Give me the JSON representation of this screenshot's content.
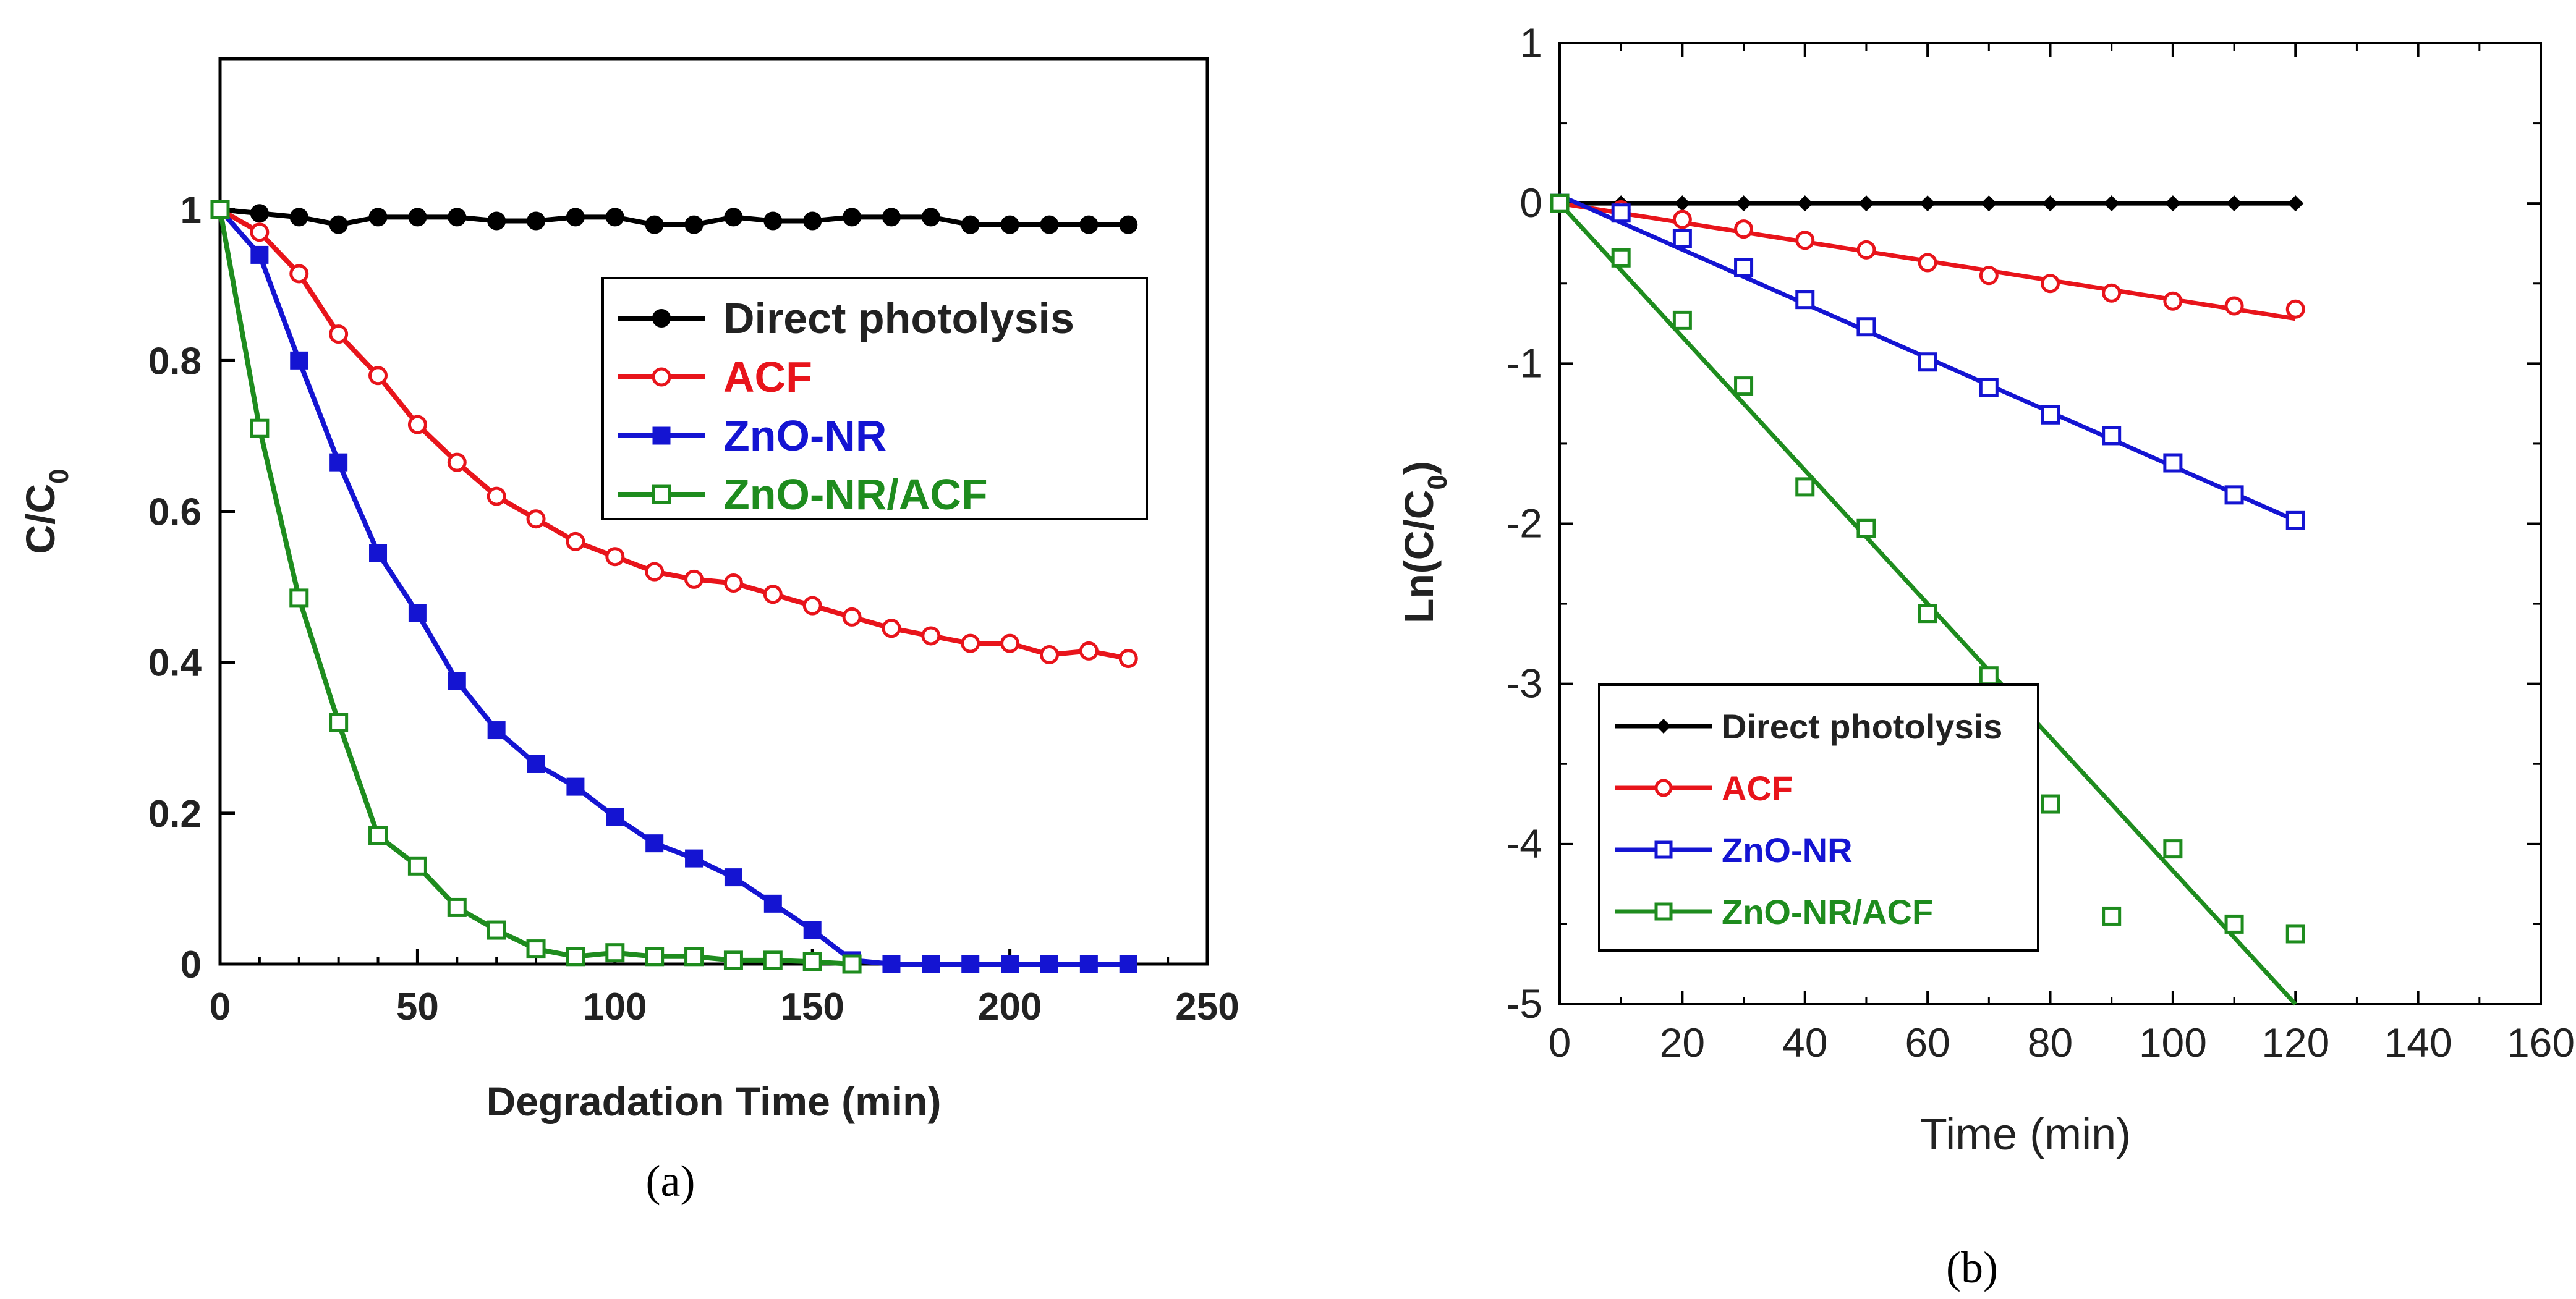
{
  "chart_data": [
    {
      "type": "line",
      "panel_label": "(a)",
      "xlabel": "Degradation Time (min)",
      "ylabel": "C/C",
      "ylabel_sub": "0",
      "xlim": [
        0,
        250
      ],
      "ylim": [
        0,
        1.2
      ],
      "xticks": [
        0,
        50,
        100,
        150,
        200,
        250
      ],
      "yticks": [
        0,
        0.2,
        0.4,
        0.6,
        0.8,
        1
      ],
      "grid": false,
      "legend_position": "center-right",
      "series": [
        {
          "name": "Direct photolysis",
          "color": "#000000",
          "marker": "circle-filled",
          "x": [
            0,
            10,
            20,
            30,
            40,
            50,
            60,
            70,
            80,
            90,
            100,
            110,
            120,
            130,
            140,
            150,
            160,
            170,
            180,
            190,
            200,
            210,
            220,
            230
          ],
          "y": [
            1,
            0.995,
            0.99,
            0.98,
            0.99,
            0.99,
            0.99,
            0.985,
            0.985,
            0.99,
            0.99,
            0.98,
            0.98,
            0.99,
            0.985,
            0.985,
            0.99,
            0.99,
            0.99,
            0.98,
            0.98,
            0.98,
            0.98,
            0.98
          ]
        },
        {
          "name": "ACF",
          "color": "#e8141b",
          "marker": "circle-open",
          "x": [
            0,
            10,
            20,
            30,
            40,
            50,
            60,
            70,
            80,
            90,
            100,
            110,
            120,
            130,
            140,
            150,
            160,
            170,
            180,
            190,
            200,
            210,
            220,
            230
          ],
          "y": [
            1,
            0.97,
            0.915,
            0.835,
            0.78,
            0.715,
            0.665,
            0.62,
            0.59,
            0.56,
            0.54,
            0.52,
            0.51,
            0.505,
            0.49,
            0.475,
            0.46,
            0.445,
            0.435,
            0.425,
            0.425,
            0.41,
            0.415,
            0.405
          ]
        },
        {
          "name": "ZnO-NR",
          "color": "#1414d2",
          "marker": "square-filled",
          "x": [
            0,
            10,
            20,
            30,
            40,
            50,
            60,
            70,
            80,
            90,
            100,
            110,
            120,
            130,
            140,
            150,
            160,
            170,
            180,
            190,
            200,
            210,
            220,
            230
          ],
          "y": [
            1,
            0.94,
            0.8,
            0.665,
            0.545,
            0.465,
            0.375,
            0.31,
            0.265,
            0.235,
            0.195,
            0.16,
            0.14,
            0.115,
            0.08,
            0.045,
            0.005,
            0,
            0,
            0,
            0,
            0,
            0,
            0
          ]
        },
        {
          "name": "ZnO-NR/ACF",
          "color": "#1e8c1e",
          "marker": "square-open",
          "x": [
            0,
            10,
            20,
            30,
            40,
            50,
            60,
            70,
            80,
            90,
            100,
            110,
            120,
            130,
            140,
            150,
            160
          ],
          "y": [
            1,
            0.71,
            0.485,
            0.32,
            0.17,
            0.13,
            0.075,
            0.045,
            0.02,
            0.01,
            0.015,
            0.01,
            0.01,
            0.005,
            0.005,
            0.003,
            0
          ]
        }
      ]
    },
    {
      "type": "scatter",
      "panel_label": "(b)",
      "xlabel": "Time (min)",
      "ylabel": "Ln(C/C",
      "ylabel_sub": "0",
      "ylabel_close": ")",
      "xlim": [
        0,
        160
      ],
      "ylim": [
        -5,
        1
      ],
      "xticks": [
        0,
        20,
        40,
        60,
        80,
        100,
        120,
        140,
        160
      ],
      "yticks": [
        -5,
        -4,
        -3,
        -2,
        -1,
        0,
        1
      ],
      "grid": false,
      "legend_position": "bottom-left",
      "series": [
        {
          "name": "Direct photolysis",
          "color": "#000000",
          "marker": "diamond-filled",
          "x": [
            0,
            10,
            20,
            30,
            40,
            50,
            60,
            70,
            80,
            90,
            100,
            110,
            120
          ],
          "y": [
            0,
            0,
            0,
            0,
            0,
            0,
            0,
            0,
            0,
            0,
            0,
            0,
            0
          ],
          "fit": [
            [
              0,
              0
            ],
            [
              120,
              0
            ]
          ]
        },
        {
          "name": "ACF",
          "color": "#e8141b",
          "marker": "circle-open",
          "x": [
            0,
            10,
            20,
            30,
            40,
            50,
            60,
            70,
            80,
            90,
            100,
            110,
            120
          ],
          "y": [
            0,
            -0.04,
            -0.1,
            -0.16,
            -0.23,
            -0.29,
            -0.37,
            -0.45,
            -0.5,
            -0.56,
            -0.61,
            -0.64,
            -0.66
          ],
          "fit": [
            [
              0,
              0
            ],
            [
              120,
              -0.72
            ]
          ]
        },
        {
          "name": "ZnO-NR",
          "color": "#1414d2",
          "marker": "square-open",
          "x": [
            0,
            10,
            20,
            30,
            40,
            50,
            60,
            70,
            80,
            90,
            100,
            110,
            120
          ],
          "y": [
            0,
            -0.06,
            -0.22,
            -0.4,
            -0.6,
            -0.77,
            -0.99,
            -1.15,
            -1.32,
            -1.45,
            -1.62,
            -1.82,
            -1.98
          ],
          "fit": [
            [
              0,
              0.05
            ],
            [
              120,
              -1.98
            ]
          ]
        },
        {
          "name": "ZnO-NR/ACF",
          "color": "#1e8c1e",
          "marker": "square-open",
          "x": [
            0,
            10,
            20,
            30,
            40,
            50,
            60,
            70,
            80,
            90,
            100,
            110,
            120
          ],
          "y": [
            0,
            -0.34,
            -0.73,
            -1.14,
            -1.77,
            -2.03,
            -2.56,
            -2.95,
            -3.75,
            -4.45,
            -4.03,
            -4.5,
            -4.56
          ],
          "fit": [
            [
              0,
              0
            ],
            [
              120,
              -5
            ]
          ]
        }
      ]
    }
  ]
}
